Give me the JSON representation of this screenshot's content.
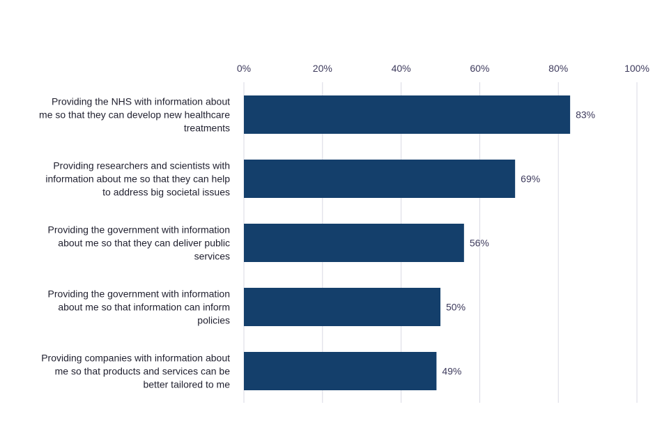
{
  "chart_data": {
    "type": "bar",
    "orientation": "horizontal",
    "title": "",
    "xlabel": "",
    "ylabel": "",
    "xlim": [
      0,
      100
    ],
    "x_ticks": [
      "0%",
      "20%",
      "40%",
      "60%",
      "80%",
      "100%"
    ],
    "x_tick_values": [
      0,
      20,
      40,
      60,
      80,
      100
    ],
    "x_axis_position": "top",
    "grid": true,
    "bar_color": "#143f6b",
    "categories": [
      [
        "Providing the NHS with information about",
        "me so that they can develop new healthcare",
        "treatments"
      ],
      [
        "Providing researchers and scientists with",
        "information about me so that they can help",
        "to address big societal issues"
      ],
      [
        "Providing the government with information",
        "about me so that they can deliver public",
        "services"
      ],
      [
        "Providing the government with information",
        "about me so that information can inform",
        "policies"
      ],
      [
        "Providing companies with information about",
        "me so that products and services can be",
        "better tailored to me"
      ]
    ],
    "values": [
      83,
      69,
      56,
      50,
      49
    ],
    "data_labels": [
      "83%",
      "69%",
      "56%",
      "50%",
      "49%"
    ]
  }
}
